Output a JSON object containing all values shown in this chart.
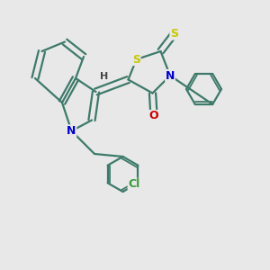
{
  "background_color": "#e8e8e8",
  "bond_color": "#3d7a6a",
  "bond_width": 1.6,
  "atom_colors": {
    "S": "#c8c800",
    "N": "#0000cc",
    "O": "#cc0000",
    "Cl": "#3a9a3a",
    "H": "#444444",
    "C": "#3d7a6a"
  },
  "font_size": 9,
  "figsize": [
    3.0,
    3.0
  ],
  "dpi": 100
}
